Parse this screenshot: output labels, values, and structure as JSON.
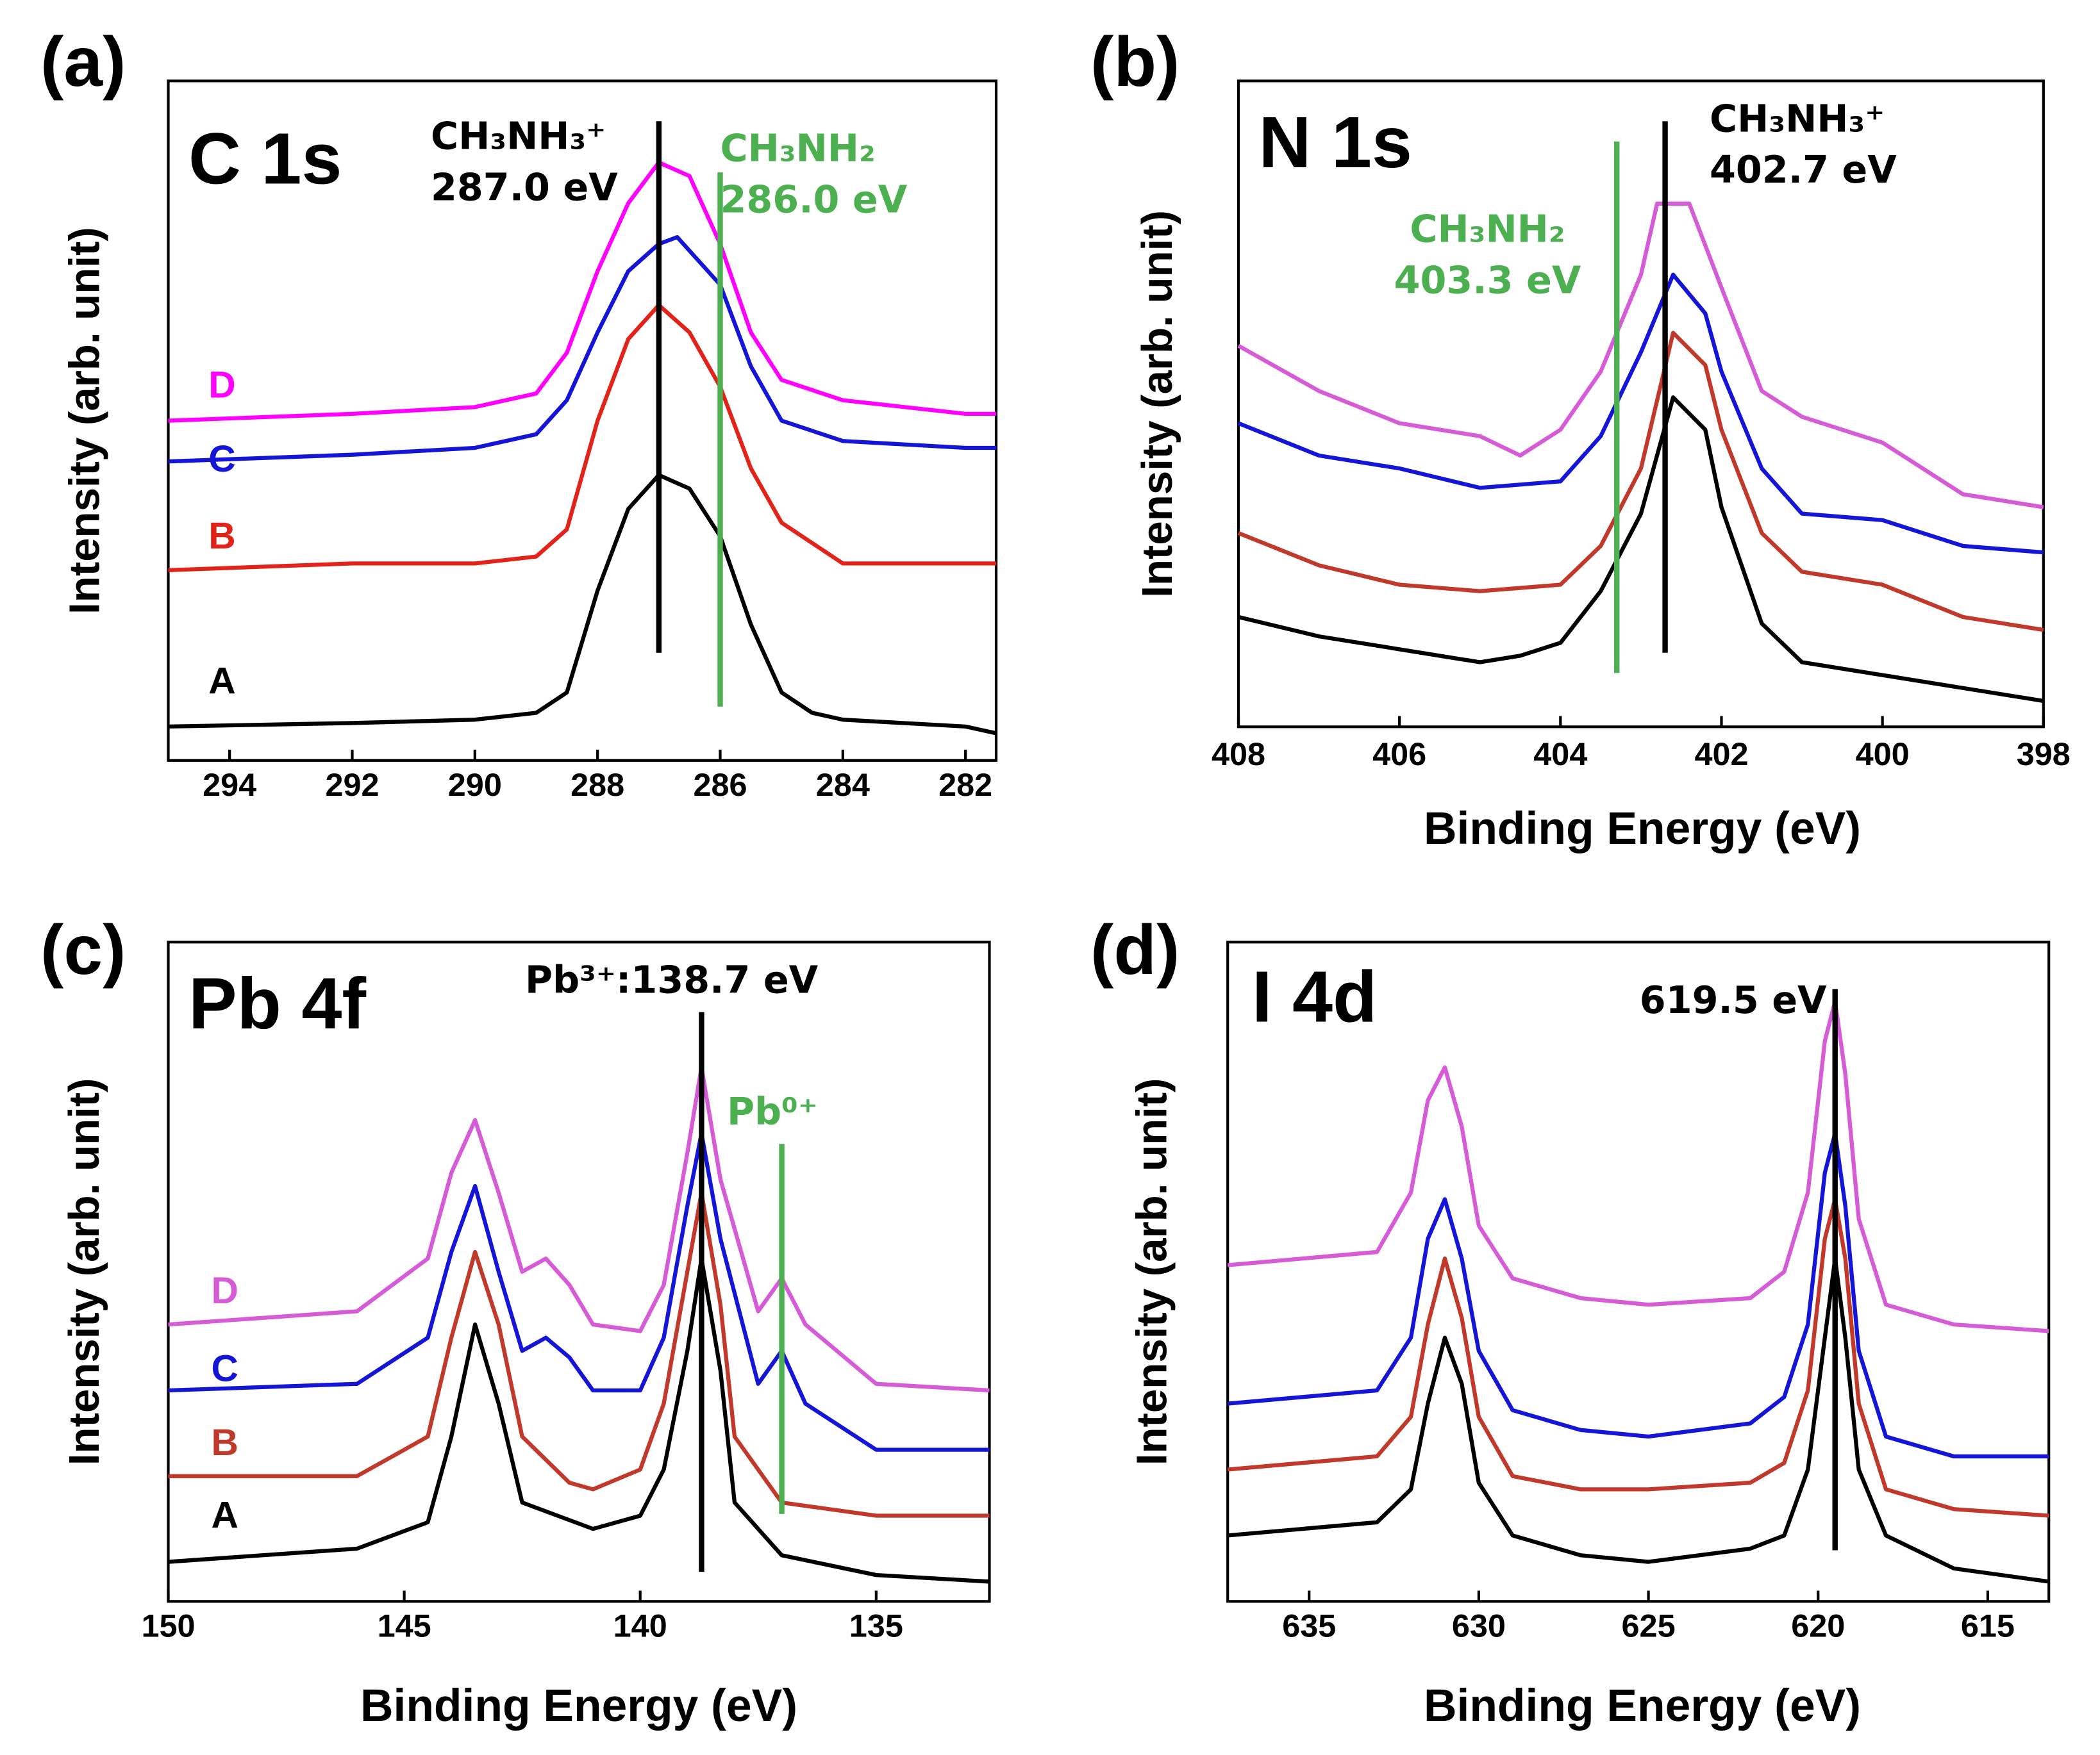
{
  "chart_data": [
    {
      "type": "line",
      "panel_label": "(a)",
      "title": "C 1s",
      "y_label": "Intensity (arb. unit)",
      "xlim": [
        295,
        281.5
      ],
      "xticks": [
        294,
        292,
        290,
        288,
        286,
        284,
        282
      ],
      "ylim": [
        0,
        100
      ],
      "series": [
        {
          "name": "A",
          "color": "#000000",
          "x": [
            295,
            292,
            290,
            289,
            288.5,
            288,
            287.5,
            287,
            286.5,
            286,
            285.5,
            285,
            284.5,
            284,
            282,
            281.5
          ],
          "values": [
            5,
            5.5,
            6,
            7,
            10,
            25,
            37,
            42,
            40,
            33,
            20,
            10,
            7,
            6,
            5,
            4
          ]
        },
        {
          "name": "B",
          "color": "#e2231a",
          "x": [
            295,
            292,
            290,
            289,
            288.5,
            288,
            287.5,
            287,
            286.5,
            286,
            285.5,
            285,
            284.5,
            284,
            282,
            281.5
          ],
          "values": [
            28,
            29,
            29,
            30,
            34,
            50,
            62,
            67,
            63,
            55,
            43,
            35,
            32,
            29,
            29,
            29
          ]
        },
        {
          "name": "C",
          "color": "#1515d8",
          "x": [
            295,
            292,
            290,
            289,
            288.5,
            288,
            287.5,
            287,
            286.7,
            286,
            285.5,
            285,
            284,
            282,
            281.5
          ],
          "values": [
            44,
            45,
            46,
            48,
            53,
            63,
            72,
            76,
            77,
            70,
            58,
            50,
            47,
            46,
            46
          ]
        },
        {
          "name": "D",
          "color": "#ff00ff",
          "x": [
            295,
            292,
            290,
            289,
            288.5,
            288,
            287.5,
            287,
            286.5,
            286,
            285.5,
            285,
            284,
            282,
            281.5
          ],
          "values": [
            50,
            51,
            52,
            54,
            60,
            72,
            82,
            88,
            86,
            76,
            63,
            56,
            53,
            51,
            51
          ]
        }
      ],
      "annotations": [
        {
          "x": 287.0,
          "color": "#000000",
          "label": [
            "CH₃NH₃⁺",
            "287.0 eV"
          ]
        },
        {
          "x": 286.0,
          "color": "#4caf50",
          "label": [
            "CH₃NH₂",
            "286.0 eV"
          ]
        }
      ]
    },
    {
      "type": "line",
      "panel_label": "(b)",
      "title": "N 1s",
      "y_label": "Intensity (arb. unit)",
      "x_label": "Binding Energy (eV)",
      "xlim": [
        408,
        398
      ],
      "xticks": [
        408,
        406,
        404,
        402,
        400,
        398
      ],
      "ylim": [
        0,
        100
      ],
      "series": [
        {
          "color": "#000000",
          "x": [
            408,
            407,
            406,
            405,
            404.5,
            404,
            403.5,
            403,
            402.6,
            402.2,
            402,
            401.5,
            401,
            400,
            399,
            398
          ],
          "values": [
            17,
            14,
            12,
            10,
            11,
            13,
            21,
            33,
            51,
            46,
            34,
            16,
            10,
            8,
            6,
            4
          ]
        },
        {
          "color": "#c0392b",
          "x": [
            408,
            407,
            406,
            405,
            404,
            403.5,
            403,
            402.6,
            402.2,
            402,
            401.5,
            401,
            400,
            399,
            398
          ],
          "values": [
            30,
            25,
            22,
            21,
            22,
            28,
            40,
            61,
            56,
            46,
            30,
            24,
            22,
            17,
            15
          ]
        },
        {
          "color": "#1515d8",
          "x": [
            408,
            407,
            406,
            405,
            404,
            403.5,
            403,
            402.6,
            402.2,
            402,
            401.5,
            401,
            400,
            399,
            398
          ],
          "values": [
            47,
            42,
            40,
            37,
            38,
            45,
            58,
            70,
            64,
            55,
            40,
            33,
            32,
            28,
            27
          ]
        },
        {
          "color": "#d65bd6",
          "x": [
            408,
            407,
            406,
            405,
            404.5,
            404,
            403.5,
            403,
            402.8,
            402.4,
            402,
            401.5,
            401,
            400,
            399,
            398
          ],
          "values": [
            59,
            52,
            47,
            45,
            42,
            46,
            55,
            70,
            81,
            81,
            68,
            52,
            48,
            44,
            36,
            34
          ]
        }
      ],
      "annotations": [
        {
          "x": 403.3,
          "color": "#4caf50",
          "label": [
            "CH₃NH₂",
            "403.3 eV"
          ]
        },
        {
          "x": 402.7,
          "color": "#000000",
          "label": [
            "CH₃NH₃⁺",
            "402.7 eV"
          ]
        }
      ]
    },
    {
      "type": "line",
      "panel_label": "(c)",
      "title": "Pb 4f",
      "y_label": "Intensity (arb. unit)",
      "x_label": "Binding Energy (eV)",
      "xlim": [
        150,
        132.6
      ],
      "xticks": [
        150,
        145,
        140,
        135
      ],
      "ylim": [
        0,
        100
      ],
      "series": [
        {
          "name": "A",
          "color": "#000000",
          "x": [
            150,
            146,
            144.5,
            144,
            143.5,
            143,
            142.5,
            141,
            140,
            139.5,
            139,
            138.7,
            138.3,
            138,
            137,
            135,
            132.6
          ],
          "values": [
            6,
            8,
            12,
            25,
            42,
            30,
            15,
            11,
            13,
            20,
            38,
            52,
            35,
            15,
            7,
            4,
            3
          ]
        },
        {
          "name": "B",
          "color": "#c0392b",
          "x": [
            150,
            146,
            144.5,
            144,
            143.5,
            143,
            142.5,
            141.5,
            141,
            140,
            139.5,
            139,
            138.7,
            138.3,
            138,
            137,
            135,
            132.6
          ],
          "values": [
            19,
            19,
            25,
            40,
            53,
            42,
            25,
            18,
            17,
            20,
            30,
            50,
            62,
            45,
            25,
            15,
            13,
            13
          ]
        },
        {
          "name": "C",
          "color": "#1515d8",
          "x": [
            150,
            146,
            144.5,
            144,
            143.5,
            143,
            142.5,
            142,
            141.5,
            141,
            140,
            139.5,
            139,
            138.7,
            138.3,
            137.5,
            137,
            136.5,
            135,
            132.6
          ],
          "values": [
            32,
            33,
            40,
            53,
            63,
            50,
            38,
            40,
            37,
            32,
            32,
            40,
            60,
            71,
            55,
            33,
            38,
            30,
            23,
            23
          ]
        },
        {
          "name": "D",
          "color": "#d65bd6",
          "x": [
            150,
            146,
            144.5,
            144,
            143.5,
            143,
            142.5,
            142,
            141.5,
            141,
            140,
            139.5,
            139,
            138.7,
            138.3,
            137.5,
            137,
            136.5,
            135,
            132.6
          ],
          "values": [
            42,
            44,
            52,
            65,
            73,
            62,
            50,
            52,
            48,
            42,
            41,
            48,
            68,
            81,
            64,
            44,
            49,
            42,
            33,
            32
          ]
        }
      ],
      "annotations": [
        {
          "x": 138.7,
          "color": "#000000",
          "label": [
            "Pb³⁺:138.7 eV"
          ]
        },
        {
          "x": 137,
          "color": "#4caf50",
          "label": [
            "Pb⁰⁺"
          ]
        }
      ]
    },
    {
      "type": "line",
      "panel_label": "(d)",
      "title": "I 4d",
      "y_label": "Intensity (arb. unit)",
      "x_label": "Binding Energy (eV)",
      "xlim": [
        637.4,
        613.2
      ],
      "xticks": [
        635,
        630,
        625,
        620,
        615
      ],
      "ylim": [
        0,
        100
      ],
      "series": [
        {
          "color": "#000000",
          "x": [
            637.4,
            633,
            632,
            631.5,
            631,
            630.5,
            630,
            629,
            627,
            625,
            622,
            621,
            620.3,
            619.8,
            619.5,
            619.2,
            618.8,
            618,
            616,
            613.2
          ],
          "values": [
            10,
            12,
            17,
            30,
            40,
            33,
            18,
            10,
            7,
            6,
            8,
            10,
            20,
            40,
            52,
            40,
            20,
            10,
            5,
            3
          ]
        },
        {
          "color": "#c0392b",
          "x": [
            637.4,
            633,
            632,
            631.5,
            631,
            630.5,
            630,
            629,
            627,
            625,
            622,
            621,
            620.3,
            619.8,
            619.5,
            619.2,
            618.8,
            618,
            616,
            613.2
          ],
          "values": [
            20,
            22,
            28,
            42,
            52,
            43,
            28,
            19,
            17,
            17,
            18,
            21,
            32,
            55,
            61,
            52,
            30,
            17,
            14,
            13
          ]
        },
        {
          "color": "#1515d8",
          "x": [
            637.4,
            633,
            632,
            631.5,
            631,
            630.5,
            630,
            629,
            627,
            625,
            622,
            621,
            620.3,
            619.8,
            619.5,
            619.2,
            618.8,
            618,
            616,
            613.2
          ],
          "values": [
            30,
            32,
            40,
            55,
            61,
            52,
            38,
            29,
            26,
            25,
            27,
            31,
            42,
            65,
            71,
            60,
            38,
            25,
            22,
            22
          ]
        },
        {
          "color": "#d65bd6",
          "x": [
            637.4,
            633,
            632,
            631.5,
            631,
            630.5,
            630,
            629,
            627,
            625,
            622,
            621,
            620.3,
            619.8,
            619.5,
            619.2,
            618.8,
            618,
            616,
            613.2
          ],
          "values": [
            51,
            53,
            62,
            76,
            81,
            72,
            57,
            49,
            46,
            45,
            46,
            50,
            62,
            85,
            91,
            80,
            58,
            45,
            42,
            41
          ]
        }
      ],
      "annotations": [
        {
          "x": 619.5,
          "color": "#000000",
          "label": [
            "619.5 eV"
          ]
        }
      ]
    }
  ]
}
